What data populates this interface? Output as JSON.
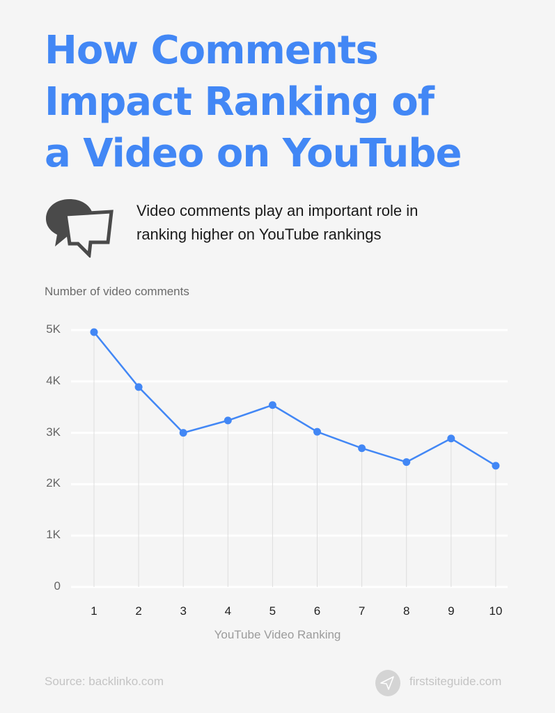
{
  "header": {
    "title_lines": [
      "How Comments",
      "Impact Ranking of",
      "a Video on YouTube"
    ],
    "subtitle_lines": [
      "Video comments play an important role in",
      "ranking higher on YouTube rankings"
    ],
    "icon": "speech-bubbles-icon"
  },
  "colors": {
    "accent": "#4287f5",
    "background": "#f5f5f5",
    "gridline": "#ffffff",
    "dropline": "#dddddd",
    "icon_dark": "#4a4a4a"
  },
  "chart_data": {
    "type": "line",
    "title": "How Comments Impact Ranking of a Video on YouTube",
    "subtitle": "Video comments play an important role in ranking higher on YouTube rankings",
    "xlabel": "YouTube Video Ranking",
    "ylabel": "Number of video comments",
    "categories": [
      "1",
      "2",
      "3",
      "4",
      "5",
      "6",
      "7",
      "8",
      "9",
      "10"
    ],
    "values": [
      4960,
      3890,
      3000,
      3240,
      3540,
      3020,
      2700,
      2430,
      2890,
      2360
    ],
    "y_ticks": [
      "0",
      "1K",
      "2K",
      "3K",
      "4K",
      "5K"
    ],
    "ylim": [
      0,
      5000
    ],
    "grid": "horizontal",
    "legend": null,
    "series": [
      {
        "name": "Number of video comments",
        "values": [
          4960,
          3890,
          3000,
          3240,
          3540,
          3020,
          2700,
          2430,
          2890,
          2360
        ]
      }
    ]
  },
  "footer": {
    "source": "Source: backlinko.com",
    "brand": "firstsiteguide.com",
    "brand_icon": "paper-plane-icon"
  }
}
